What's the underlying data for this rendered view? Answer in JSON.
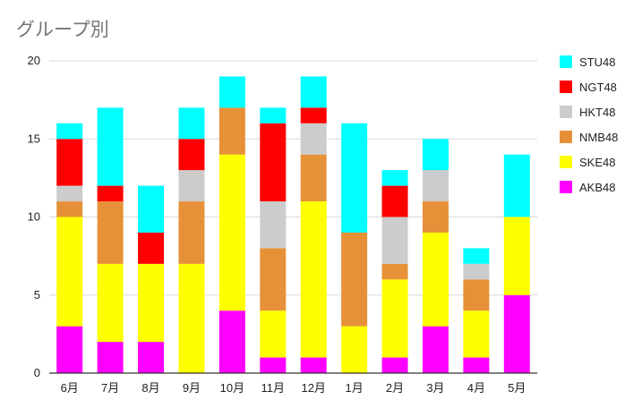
{
  "chart_data": {
    "type": "bar",
    "stacked": true,
    "title": "グループ別",
    "xlabel": "",
    "ylabel": "",
    "ylim": [
      0,
      20
    ],
    "yticks": [
      0,
      5,
      10,
      15,
      20
    ],
    "grid": true,
    "legend_position": "right",
    "categories": [
      "6月",
      "7月",
      "8月",
      "9月",
      "10月",
      "11月",
      "12月",
      "1月",
      "2月",
      "3月",
      "4月",
      "5月"
    ],
    "series": [
      {
        "name": "AKB48",
        "color": "#ff00ff",
        "values": [
          3,
          2,
          2,
          0,
          4,
          1,
          1,
          0,
          1,
          3,
          1,
          5
        ]
      },
      {
        "name": "SKE48",
        "color": "#ffff00",
        "values": [
          7,
          5,
          5,
          7,
          10,
          3,
          10,
          3,
          5,
          6,
          3,
          5
        ]
      },
      {
        "name": "NMB48",
        "color": "#e69138",
        "values": [
          1,
          4,
          0,
          4,
          3,
          4,
          3,
          6,
          1,
          2,
          2,
          0
        ]
      },
      {
        "name": "HKT48",
        "color": "#cccccc",
        "values": [
          1,
          0,
          0,
          2,
          0,
          3,
          2,
          0,
          3,
          2,
          1,
          0
        ]
      },
      {
        "name": "NGT48",
        "color": "#ff0000",
        "values": [
          3,
          1,
          2,
          2,
          0,
          5,
          1,
          0,
          2,
          0,
          0,
          0
        ]
      },
      {
        "name": "STU48",
        "color": "#00ffff",
        "values": [
          1,
          5,
          3,
          2,
          2,
          1,
          2,
          7,
          1,
          2,
          1,
          4
        ]
      }
    ]
  }
}
